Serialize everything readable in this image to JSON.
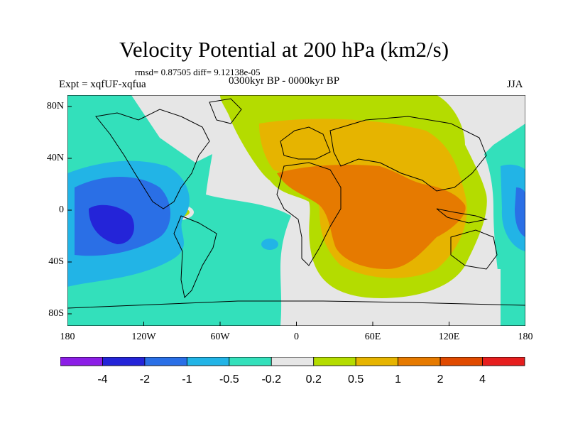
{
  "title": "Velocity Potential at 200 hPa (km2/s)",
  "stats": "rmsd= 0.87505 diff= 9.12138e-05",
  "left_label": "Expt = xqfUF-xqfua",
  "center_label": "0300kyr BP - 0000kyr BP",
  "right_label": "JJA",
  "lat_ticks": [
    "80N",
    "40N",
    "0",
    "40S",
    "80S"
  ],
  "lon_ticks": [
    "180",
    "120W",
    "60W",
    "0",
    "60E",
    "120E",
    "180"
  ],
  "colorbar": {
    "labels": [
      "-4",
      "-2",
      "-1",
      "-0.5",
      "-0.2",
      "0.2",
      "0.5",
      "1",
      "2",
      "4"
    ],
    "colors": [
      "#8c1ee6",
      "#2424d8",
      "#2a6fe6",
      "#22b4e6",
      "#33e0bb",
      "#e6e6e6",
      "#b4dc00",
      "#e6b400",
      "#e67a00",
      "#e04a00",
      "#e61e1e"
    ]
  },
  "colors": {
    "neutral": "#e6e6e6",
    "pos_0_2": "#b4dc00",
    "pos_0_5": "#e6b400",
    "pos_1": "#e67a00",
    "neg_0_2": "#33e0bb",
    "neg_0_5": "#22b4e6",
    "neg_1": "#2a6fe6",
    "neg_2": "#2424d8"
  }
}
